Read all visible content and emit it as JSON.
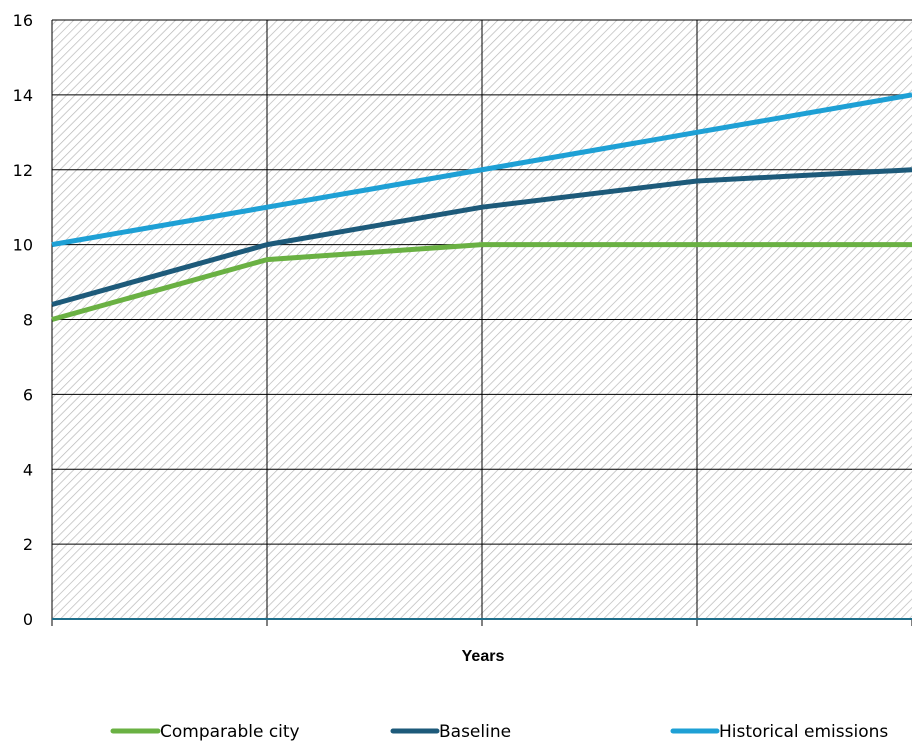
{
  "chart_data": {
    "type": "line",
    "title": "",
    "xlabel": "Years",
    "ylabel": "",
    "x": [
      1,
      2,
      3,
      4,
      5
    ],
    "ylim": [
      0,
      16
    ],
    "yticks": [
      "0",
      "2",
      "4",
      "6",
      "8",
      "10",
      "12",
      "14",
      "16"
    ],
    "grid": true,
    "legend_position": "bottom",
    "series": [
      {
        "name": "Comparable city",
        "color": "#6ab143",
        "values": [
          8.0,
          9.6,
          10.0,
          10.0,
          10.0
        ]
      },
      {
        "name": "Baseline",
        "color": "#1d5a7a",
        "values": [
          8.4,
          10.0,
          11.0,
          11.7,
          12.0
        ]
      },
      {
        "name": "Historical emissions",
        "color": "#1ea0d5",
        "values": [
          10.0,
          11.0,
          12.0,
          13.0,
          14.0
        ]
      }
    ]
  }
}
